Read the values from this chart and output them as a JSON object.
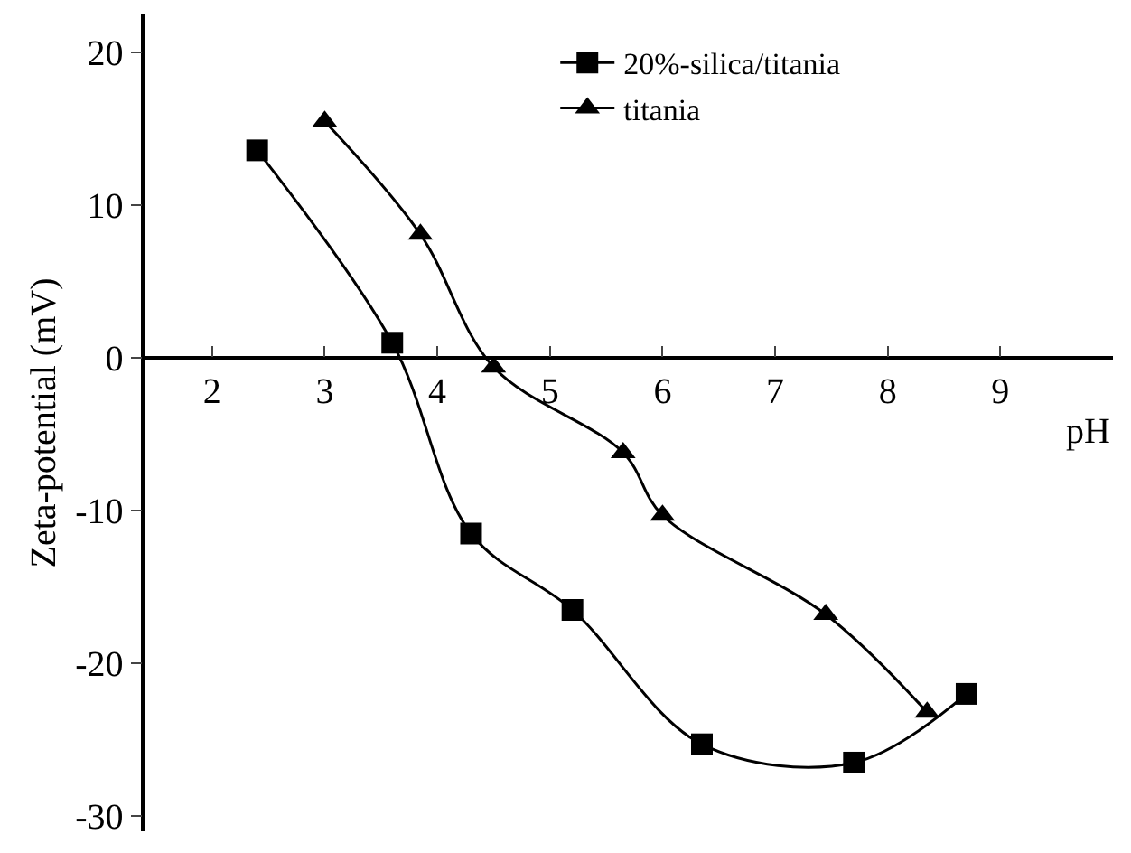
{
  "chart_data": {
    "type": "line",
    "xlabel": "pH",
    "ylabel": "Zeta-potential (mV)",
    "xlim": [
      1.4,
      10.0
    ],
    "ylim": [
      -31,
      22.5
    ],
    "xticks": [
      2,
      3,
      4,
      5,
      6,
      7,
      8,
      9
    ],
    "yticks": [
      -30,
      -20,
      -10,
      0,
      10,
      20
    ],
    "legend": "top right",
    "line_style": "solid",
    "series": [
      {
        "name": "20%-silica/titania",
        "color": "#000000",
        "marker": "square",
        "x": [
          2.4,
          3.6,
          4.3,
          5.2,
          6.35,
          7.7,
          8.7
        ],
        "values": [
          13.6,
          1.0,
          -11.5,
          -16.5,
          -25.3,
          -26.5,
          -22.0
        ]
      },
      {
        "name": "titania",
        "color": "#000000",
        "marker": "triangle",
        "x": [
          3.0,
          3.85,
          4.5,
          5.65,
          6.0,
          7.45,
          8.35
        ],
        "values": [
          15.5,
          8.1,
          -0.6,
          -6.2,
          -10.3,
          -16.8,
          -23.2
        ]
      }
    ]
  }
}
